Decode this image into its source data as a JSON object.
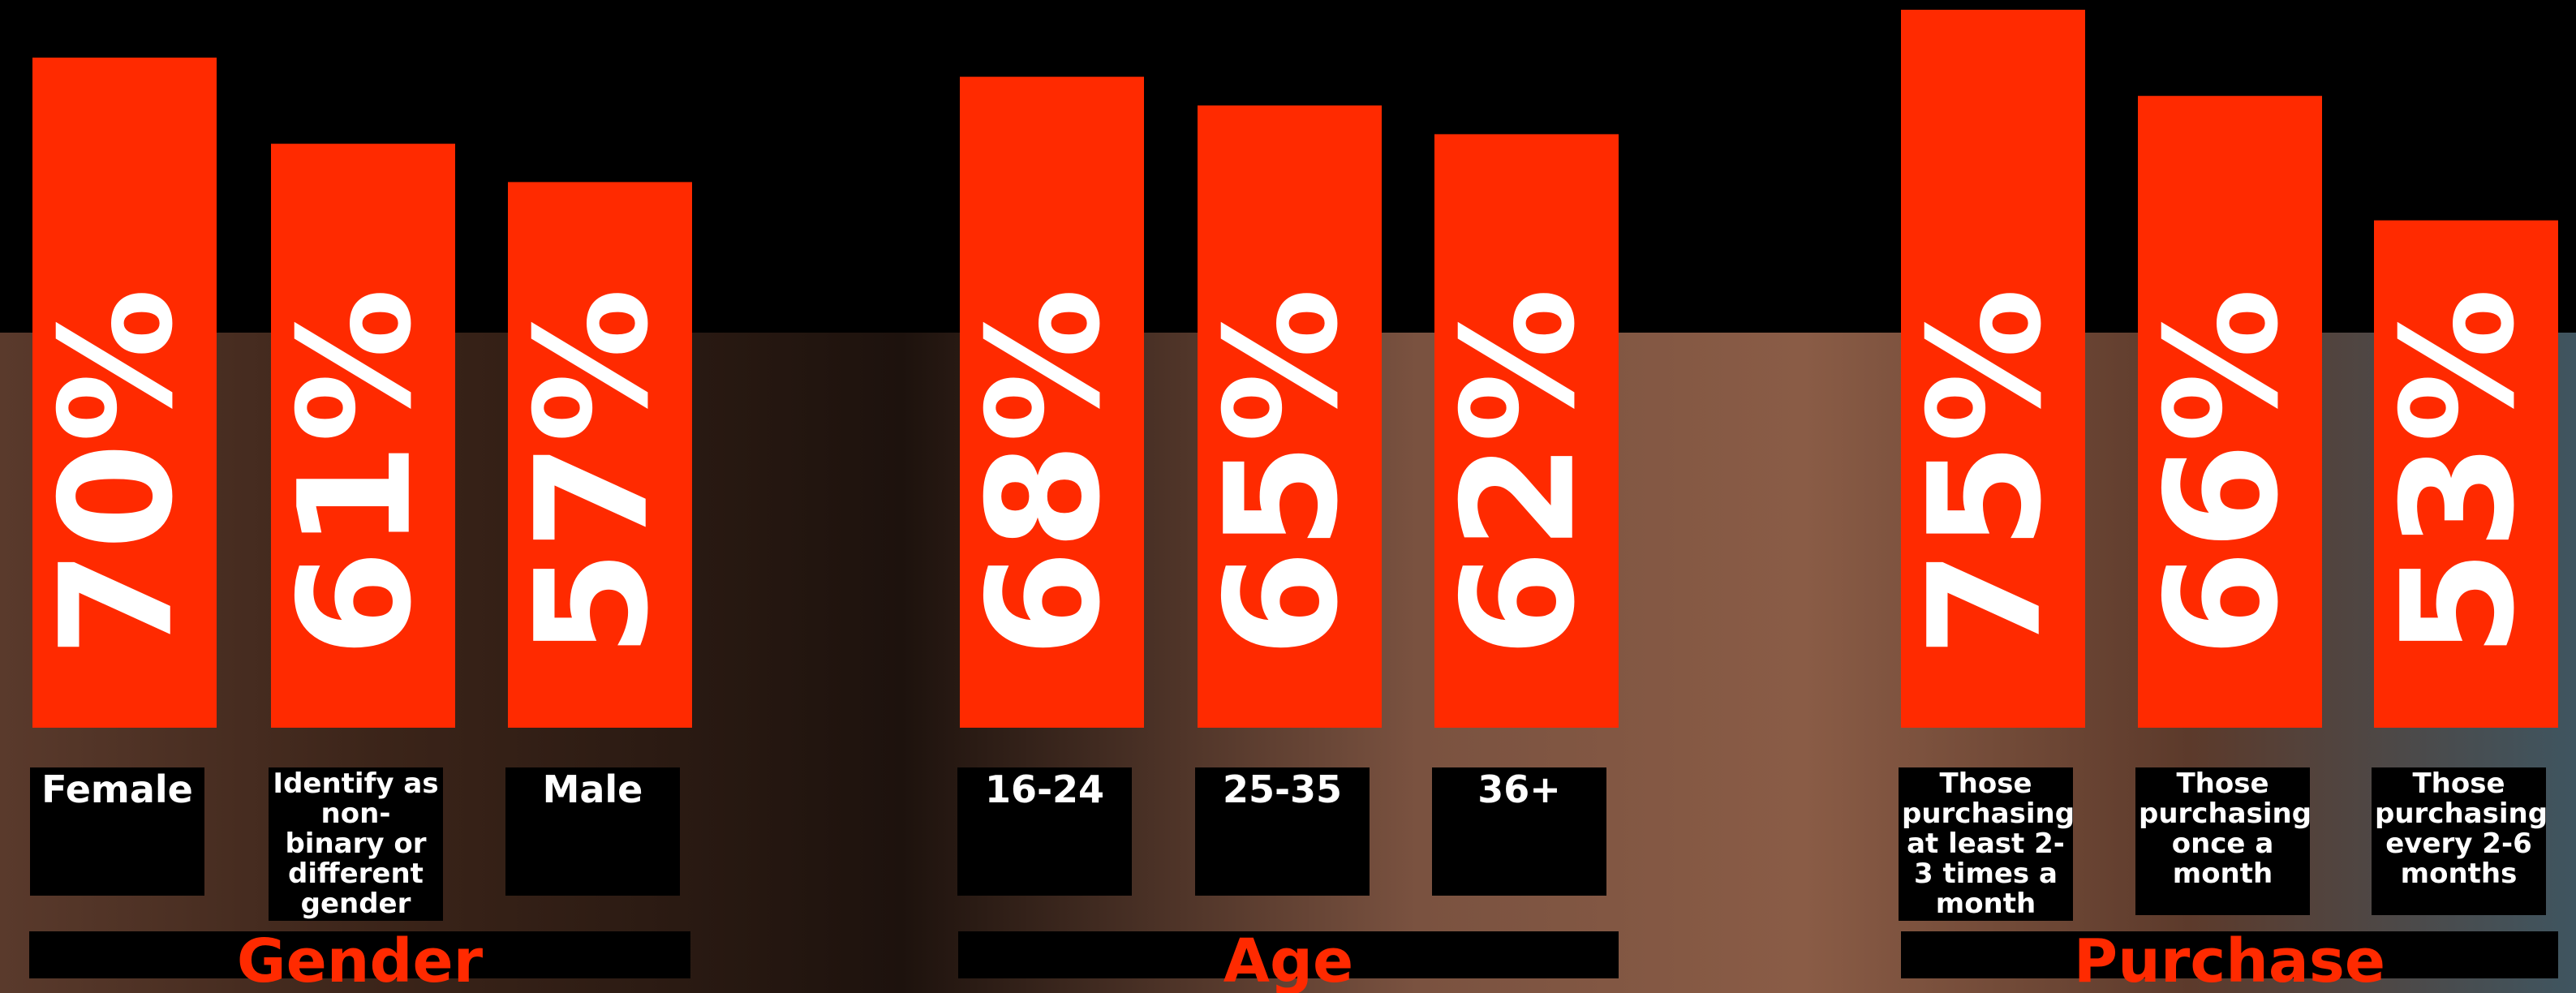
{
  "chart_data": [
    {
      "type": "bar",
      "title": "Gender",
      "categories": [
        "Female",
        "Identify as non-binary or different gender",
        "Male"
      ],
      "values": [
        70,
        61,
        57
      ],
      "value_labels": [
        "70%",
        "61%",
        "57%"
      ],
      "color": "#ff2a00"
    },
    {
      "type": "bar",
      "title": "Age",
      "categories": [
        "16-24",
        "25-35",
        "36+"
      ],
      "values": [
        68,
        65,
        62
      ],
      "value_labels": [
        "68%",
        "65%",
        "62%"
      ],
      "color": "#ff2a00"
    },
    {
      "type": "bar",
      "title": "Purchase",
      "categories": [
        "Those purchasing at least 2-3 times a month",
        "Those purchasing once a month",
        "Those purchasing every 2-6 months"
      ],
      "values": [
        75,
        66,
        53
      ],
      "value_labels": [
        "75%",
        "66%",
        "53%"
      ],
      "color": "#ff2a00"
    }
  ]
}
